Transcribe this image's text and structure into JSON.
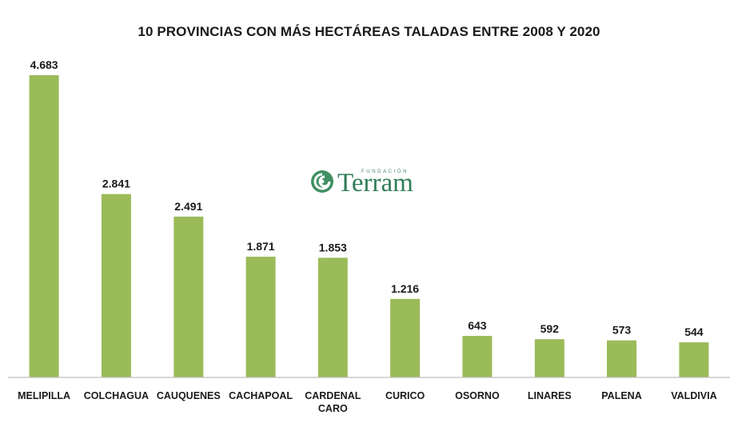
{
  "chart_data": {
    "type": "bar",
    "title": "10 PROVINCIAS CON MÁS HECTÁREAS TALADAS ENTRE 2008 Y 2020",
    "categories": [
      "MELIPILLA",
      "COLCHAGUA",
      "CAUQUENES",
      "CACHAPOAL",
      "CARDENAL CARO",
      "CURICO",
      "OSORNO",
      "LINARES",
      "PALENA",
      "VALDIVIA"
    ],
    "values": [
      4683,
      2841,
      2491,
      1871,
      1853,
      1216,
      643,
      592,
      573,
      544
    ],
    "value_labels": [
      "4.683",
      "2.841",
      "2.491",
      "1.871",
      "1.853",
      "1.216",
      "643",
      "592",
      "573",
      "544"
    ],
    "ylim": [
      0,
      4683
    ],
    "grid": false,
    "legend": "none",
    "bar_color": "#9bbb59"
  },
  "watermark": {
    "org_small": "FUNDACIÓN",
    "org_name": "Terram",
    "icon": "spiral-logo-icon",
    "color": "#2e7d57"
  }
}
